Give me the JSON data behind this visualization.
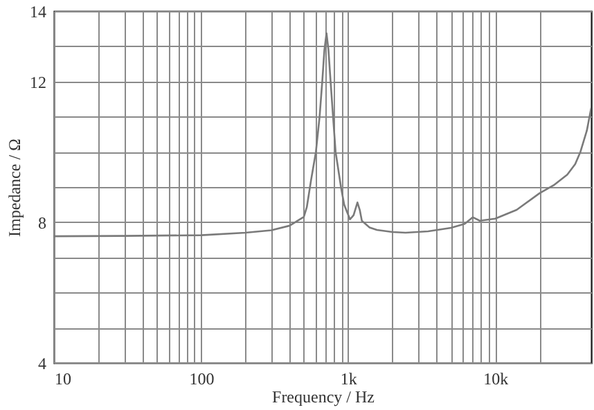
{
  "chart_data": {
    "type": "line",
    "xlabel": "Frequency / Hz",
    "ylabel": "Impedance / Ω",
    "log": "x",
    "grid": true,
    "line_style": "solid",
    "xlim": [
      10,
      45000
    ],
    "ylim": [
      4,
      14
    ],
    "xticks": [
      {
        "value": 10,
        "label": "10"
      },
      {
        "value": 20,
        "label": null
      },
      {
        "value": 30,
        "label": null
      },
      {
        "value": 40,
        "label": null
      },
      {
        "value": 50,
        "label": null
      },
      {
        "value": 60,
        "label": null
      },
      {
        "value": 70,
        "label": null
      },
      {
        "value": 80,
        "label": null
      },
      {
        "value": 90,
        "label": null
      },
      {
        "value": 100,
        "label": "100"
      },
      {
        "value": 200,
        "label": null
      },
      {
        "value": 300,
        "label": null
      },
      {
        "value": 400,
        "label": null
      },
      {
        "value": 500,
        "label": null
      },
      {
        "value": 600,
        "label": null
      },
      {
        "value": 700,
        "label": null
      },
      {
        "value": 800,
        "label": null
      },
      {
        "value": 900,
        "label": null
      },
      {
        "value": 1000,
        "label": "1k"
      },
      {
        "value": 2000,
        "label": null
      },
      {
        "value": 3000,
        "label": null
      },
      {
        "value": 4000,
        "label": null
      },
      {
        "value": 5000,
        "label": null
      },
      {
        "value": 6000,
        "label": null
      },
      {
        "value": 7000,
        "label": null
      },
      {
        "value": 8000,
        "label": null
      },
      {
        "value": 9000,
        "label": null
      },
      {
        "value": 10000,
        "label": "10k"
      },
      {
        "value": 20000,
        "label": null
      }
    ],
    "yticks": [
      4,
      {
        "value": 5,
        "label": null
      },
      {
        "value": 6,
        "label": null
      },
      {
        "value": 7,
        "label": null
      },
      8,
      {
        "value": 9,
        "label": null
      },
      {
        "value": 10,
        "label": null
      },
      {
        "value": 11,
        "label": null
      },
      12,
      {
        "value": 13,
        "label": null
      },
      14
    ],
    "series": [
      {
        "color": "#7a7a7a",
        "x": [
          10,
          30,
          100,
          200,
          300,
          400,
          500,
          524,
          560,
          604,
          640,
          667,
          690,
          713,
          735,
          760,
          790,
          822,
          894,
          940,
          1030,
          1090,
          1157,
          1200,
          1240,
          1400,
          1570,
          2000,
          2460,
          3500,
          5000,
          6200,
          7040,
          7860,
          10000,
          14000,
          20000,
          25000,
          30900,
          35000,
          38000,
          42000,
          45000
        ],
        "values": [
          7.6,
          7.61,
          7.63,
          7.7,
          7.77,
          7.9,
          8.15,
          8.43,
          9.2,
          10.0,
          11.0,
          12.0,
          12.9,
          13.37,
          12.9,
          12.0,
          11.0,
          10.0,
          9.0,
          8.5,
          8.08,
          8.2,
          8.56,
          8.35,
          8.04,
          7.85,
          7.78,
          7.72,
          7.7,
          7.74,
          7.84,
          7.95,
          8.14,
          8.04,
          8.1,
          8.35,
          8.82,
          9.05,
          9.35,
          9.65,
          10.0,
          10.6,
          11.25
        ]
      }
    ]
  }
}
